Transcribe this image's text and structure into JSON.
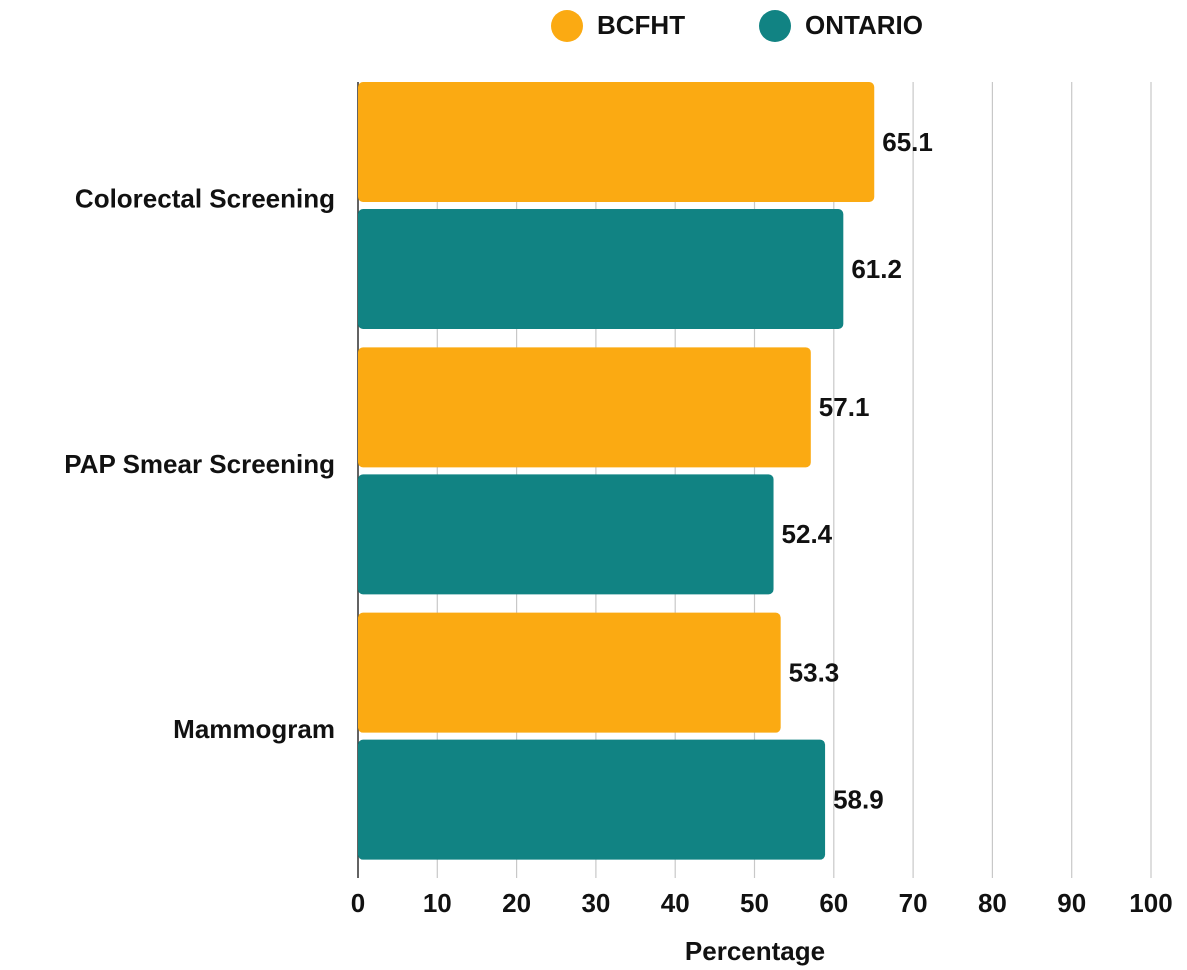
{
  "chart_data": {
    "type": "hbar",
    "categories": [
      "Colorectal Screening",
      "PAP Smear Screening",
      "Mammogram"
    ],
    "series": [
      {
        "name": "BCFHT",
        "color": "#fbaa12",
        "values": [
          65.1,
          57.1,
          53.3
        ]
      },
      {
        "name": "ONTARIO",
        "color": "#118383",
        "values": [
          61.2,
          52.4,
          58.9
        ]
      }
    ],
    "xlabel": "Percentage",
    "xlim": [
      0,
      100
    ],
    "xticks": [
      0,
      10,
      20,
      30,
      40,
      50,
      60,
      70,
      80,
      90,
      100
    ],
    "grid": true,
    "legend": "top"
  }
}
